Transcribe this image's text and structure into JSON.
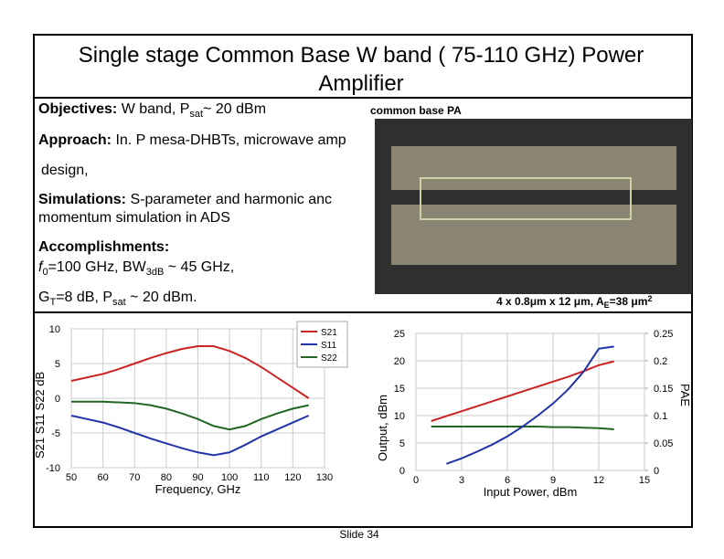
{
  "title_lines": [
    "Single stage Common Base W band ( 75-110 GHz) Power",
    "Amplifier"
  ],
  "objectives": {
    "label": "Objectives:",
    "text": " W band, P",
    "sub": "sat",
    "after": "~ 20 dBm"
  },
  "image_caption_top": "common base PA",
  "approach": {
    "label": "Approach:",
    "text": " In. P mesa-DHBTs, microwave amp",
    "cont": "design,"
  },
  "simulations": {
    "label": "Simulations:",
    "text": " S-parameter and harmonic anc",
    "line2": "momentum simulation in  ADS"
  },
  "accomplishments": {
    "label": "Accomplishments:",
    "f": "f",
    "f_sub": "0",
    "f_text": "=100 GHz, BW",
    "bw_sub": "3dB",
    "bw_text": " ~ 45 GHz,",
    "g": "G",
    "g_sub": "T",
    "g_text": "=8 dB, P",
    "p_sub": "sat",
    "p_text": " ~ 20 dBm."
  },
  "image_caption": {
    "text": "4 x 0.8μm x 12 μm, A",
    "sub": "E",
    "text2": "=38 μm",
    "sup": "2"
  },
  "footer": "Slide 34",
  "chart_data": [
    {
      "type": "line",
      "xlabel": "Frequency, GHz",
      "ylabel": "S21 S11 S22 dB",
      "x": [
        50,
        55,
        60,
        65,
        70,
        75,
        80,
        85,
        90,
        95,
        100,
        105,
        110,
        115,
        120,
        125
      ],
      "xlim": [
        50,
        130
      ],
      "xticks": [
        50,
        60,
        70,
        80,
        90,
        100,
        110,
        120,
        130
      ],
      "ylim": [
        -10,
        10
      ],
      "yticks": [
        -10,
        -5,
        0,
        5,
        10
      ],
      "grid": true,
      "legend": "top-right",
      "series": [
        {
          "name": "S21",
          "color": "#cc2222",
          "values": [
            2.5,
            3,
            3.5,
            4.2,
            5,
            5.8,
            6.5,
            7.1,
            7.5,
            7.5,
            6.8,
            5.8,
            4.5,
            3,
            1.5,
            0
          ]
        },
        {
          "name": "S11",
          "color": "#2233aa",
          "values": [
            -2.5,
            -3,
            -3.5,
            -4.2,
            -5,
            -5.8,
            -6.5,
            -7.2,
            -7.8,
            -8.2,
            -7.8,
            -6.7,
            -5.5,
            -4.5,
            -3.5,
            -2.5
          ]
        },
        {
          "name": "S22",
          "color": "#226622",
          "values": [
            -0.5,
            -0.5,
            -0.5,
            -0.6,
            -0.7,
            -1,
            -1.5,
            -2.2,
            -3,
            -4,
            -4.5,
            -4,
            -3,
            -2.2,
            -1.5,
            -1
          ]
        }
      ]
    },
    {
      "type": "line",
      "xlabel": "Input Power, dBm",
      "ylabel": "Output, dBm",
      "y2label": "PAE",
      "x": [
        1,
        2,
        3,
        4,
        5,
        6,
        7,
        8,
        9,
        10,
        11,
        12,
        13
      ],
      "xlim": [
        0,
        15
      ],
      "xticks": [
        0,
        3,
        6,
        9,
        12,
        15
      ],
      "ylim": [
        0,
        25
      ],
      "yticks": [
        0,
        5,
        10,
        15,
        20,
        25
      ],
      "y2lim": [
        0,
        0.25
      ],
      "y2ticks": [
        0,
        0.05,
        0.1,
        0.15,
        0.2,
        0.25
      ],
      "grid": true,
      "series": [
        {
          "color": "#cc2222",
          "values": [
            9,
            9.9,
            10.8,
            11.7,
            12.6,
            13.5,
            14.4,
            15.3,
            16.2,
            17.1,
            18.1,
            19.2,
            19.9
          ]
        },
        {
          "color": "#226622",
          "values": [
            8,
            8,
            8,
            8,
            8,
            8,
            8,
            8,
            7.9,
            7.9,
            7.8,
            7.7,
            7.5
          ]
        },
        {
          "color": "#2233aa",
          "axis": "y2",
          "values": [
            null,
            0.012,
            0.022,
            0.034,
            0.047,
            0.062,
            0.08,
            0.1,
            0.122,
            0.148,
            0.18,
            0.222,
            0.226
          ]
        }
      ]
    }
  ]
}
